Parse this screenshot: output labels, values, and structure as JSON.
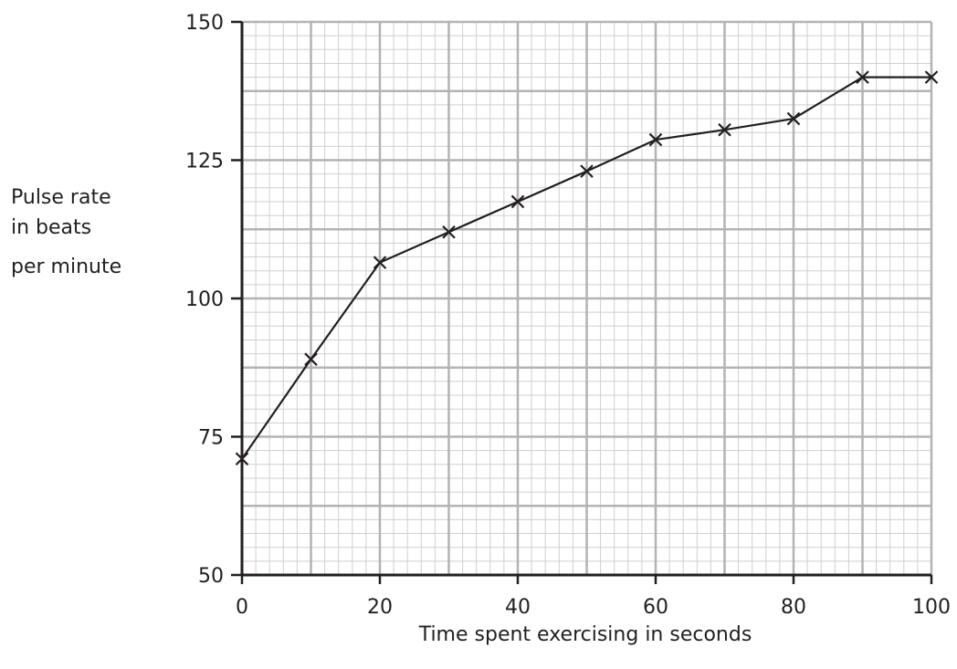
{
  "chart_data": {
    "type": "line",
    "title": "",
    "xlabel": "Time spent exercising in seconds",
    "ylabel_lines": [
      "Pulse rate",
      "in beats",
      "per minute"
    ],
    "xlim": [
      0,
      100
    ],
    "ylim": [
      50,
      150
    ],
    "x_ticks": [
      0,
      20,
      40,
      60,
      80,
      100
    ],
    "y_ticks": [
      50,
      75,
      100,
      125,
      150
    ],
    "x_major_step": 10,
    "x_minor_step": 2,
    "y_major_step": 12.5,
    "y_minor_step": 2.5,
    "grid": true,
    "marker": "cross",
    "x": [
      0,
      10,
      20,
      30,
      40,
      50,
      60,
      70,
      80,
      90,
      100
    ],
    "y": [
      71,
      89,
      106.5,
      112,
      117.5,
      123,
      128.7,
      130.5,
      132.5,
      140,
      140
    ],
    "colors": {
      "line": "#231f20",
      "axis": "#231f20",
      "grid_major": "#b3b3b3",
      "grid_minor": "#cfcfcf"
    }
  }
}
